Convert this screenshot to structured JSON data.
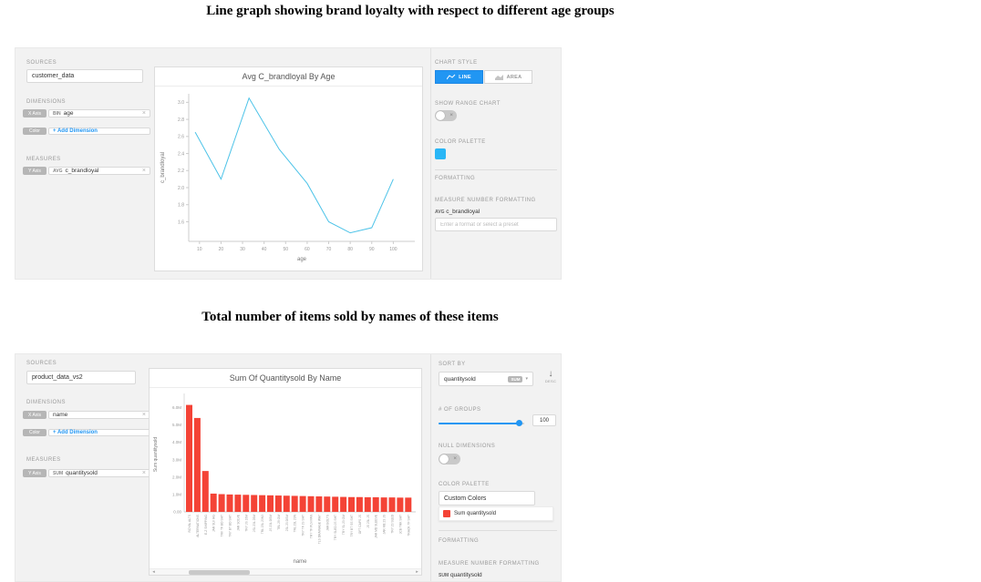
{
  "titles": {
    "chart1": "Line graph showing brand loyalty with respect to different age groups",
    "chart2": "Total number of items sold by names of these items"
  },
  "icons": {
    "remove": "×",
    "caret_down": "▾",
    "sort_desc_arrow": "↓",
    "scroll_left": "◂",
    "scroll_right": "▸",
    "toggle_off": "×"
  },
  "colors": {
    "accent_blue": "#2196f3",
    "palette_cyan": "#29b6f6",
    "bar_red": "#f44336",
    "line_cyan": "#4dc3e8"
  },
  "panel1": {
    "sources_label": "SOURCES",
    "source_value": "customer_data",
    "dimensions_label": "DIMENSIONS",
    "x_axis_tag": "X Axis",
    "x_axis_agg": "BIN",
    "x_axis_field": "age",
    "color_tag": "Color",
    "add_dimension_label": "+ Add Dimension",
    "measures_label": "MEASURES",
    "y_axis_tag": "Y Axis",
    "y_axis_agg": "AVG",
    "y_axis_field": "c_brandloyal",
    "settings": {
      "chart_style_label": "CHART STYLE",
      "line_button": "LINE",
      "area_button": "AREA",
      "show_range_label": "SHOW RANGE CHART",
      "color_palette_label": "COLOR PALETTE",
      "formatting_label": "FORMATTING",
      "measure_number_formatting_label": "MEASURE NUMBER FORMATTING",
      "measure_ref_agg": "AVG",
      "measure_ref_field": "c_brandloyal",
      "format_placeholder": "Enter a format or select a preset"
    }
  },
  "panel2": {
    "sources_label": "SOURCES",
    "source_value": "product_data_vs2",
    "dimensions_label": "DIMENSIONS",
    "x_axis_tag": "X Axis",
    "x_axis_field": "name",
    "color_tag": "Color",
    "add_dimension_label": "+ Add Dimension",
    "measures_label": "MEASURES",
    "y_axis_tag": "Y Axis",
    "y_axis_agg": "SUM",
    "y_axis_field": "quantitysold",
    "settings": {
      "sort_by_label": "SORT BY",
      "sort_field": "quantitysold",
      "sort_agg": "SUM",
      "desc_label": "DESC",
      "groups_label": "# OF GROUPS",
      "groups_value": "100",
      "null_dimensions_label": "NULL DIMENSIONS",
      "color_palette_label": "COLOR PALETTE",
      "palette_value": "Custom Colors",
      "palette_series": "Sum quantitysold",
      "formatting_label": "FORMATTING",
      "measure_number_formatting_label": "MEASURE NUMBER FORMATTING",
      "measure_ref_agg": "SUM",
      "measure_ref_field": "quantitysold"
    }
  },
  "chart_data": [
    {
      "type": "line",
      "title": "Avg C_brandloyal By Age",
      "xlabel": "age",
      "ylabel": "c_brandloyal",
      "x": [
        8,
        20,
        33,
        47,
        60,
        70,
        80,
        90,
        100
      ],
      "y": [
        2.65,
        2.1,
        3.05,
        2.45,
        2.05,
        1.6,
        1.47,
        1.53,
        2.1
      ],
      "xticks": [
        10,
        20,
        30,
        40,
        50,
        60,
        70,
        80,
        90,
        100
      ],
      "yticks": [
        1.6,
        1.8,
        2.0,
        2.2,
        2.4,
        2.6,
        2.8,
        3.0
      ],
      "xlim": [
        5,
        110
      ],
      "ylim": [
        1.37,
        3.1
      ],
      "grid": false,
      "legend": false,
      "color": "#4dc3e8"
    },
    {
      "type": "bar",
      "title": "Sum Of Quantitysold By Name",
      "xlabel": "name",
      "ylabel": "Sum quantitysold",
      "categories": [
        "ROYAL ALTS",
        "ALTERNATIONS",
        "E-Z SHIPPING",
        "JAR SLV HG",
        "TRV TF BD SHT",
        "TRY BT BD SHT",
        "JAR SOLVE",
        "TRY JS 10M",
        "JSL 23L 20M",
        "TRL 23L 23N3",
        "JS 23L DSM",
        "TRL 29 OM",
        "23L 23 DSM",
        "TRL 23L 23N",
        "TRY TF JS SHT",
        "TRY TF PLN PAN",
        "TLS DRAINAGE WAY",
        "JAR BOLTS",
        "TRY SLED JS SHT",
        "TRY SL 23 OM",
        "TRY BT SS SHT",
        "GFT CAPS JS",
        "JS 23L JS",
        "JAR MD SLEEVE",
        "JAR ME 23 JS",
        "TRY 23 SLED",
        "JCB TRK SHT",
        "TRACK TF SHT"
      ],
      "values": [
        6.15,
        5.4,
        2.35,
        1.05,
        1.02,
        1.0,
        0.99,
        0.98,
        0.97,
        0.96,
        0.95,
        0.94,
        0.93,
        0.92,
        0.91,
        0.9,
        0.89,
        0.88,
        0.87,
        0.86,
        0.85,
        0.85,
        0.84,
        0.84,
        0.83,
        0.83,
        0.82,
        0.82
      ],
      "value_unit": "millions",
      "yticks": [
        0,
        1,
        2,
        3,
        4,
        5,
        6
      ],
      "ytick_labels": [
        "0.00",
        "1.0M",
        "2.0M",
        "3.0M",
        "4.0M",
        "5.0M",
        "6.0M"
      ],
      "ylim": [
        0,
        6.6
      ],
      "grid": false,
      "legend": false,
      "color": "#f44336"
    }
  ]
}
